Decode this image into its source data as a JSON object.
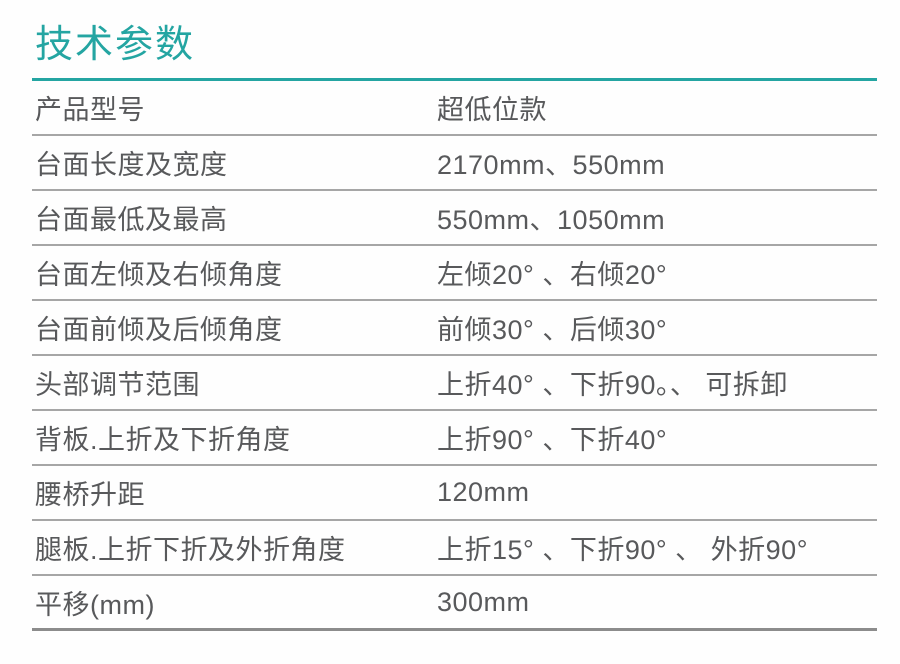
{
  "page": {
    "title": "技术参数"
  },
  "colors": {
    "accent": "#24a5a2",
    "text": "#58595b",
    "divider": "#a6a6a6",
    "divider_strong": "#8c8c8c"
  },
  "table": {
    "rows": [
      {
        "label": "产品型号",
        "value": "超低位款"
      },
      {
        "label": "台面长度及宽度",
        "value": "2170mm、550mm"
      },
      {
        "label": "台面最低及最高",
        "value": "550mm、1050mm"
      },
      {
        "label": "台面左倾及右倾角度",
        "value": "左倾20° 、右倾20°"
      },
      {
        "label": "台面前倾及后倾角度",
        "value": "前倾30° 、后倾30°"
      },
      {
        "label": "头部调节范围",
        "value": "上折40° 、下折90。、 可拆卸"
      },
      {
        "label": "背板.上折及下折角度",
        "value": "上折90° 、下折40°"
      },
      {
        "label": "腰桥升距",
        "value": "120mm"
      },
      {
        "label": "腿板.上折下折及外折角度",
        "value": "上折15° 、下折90° 、 外折90°"
      },
      {
        "label": "平移(mm)",
        "value": "300mm"
      }
    ]
  }
}
